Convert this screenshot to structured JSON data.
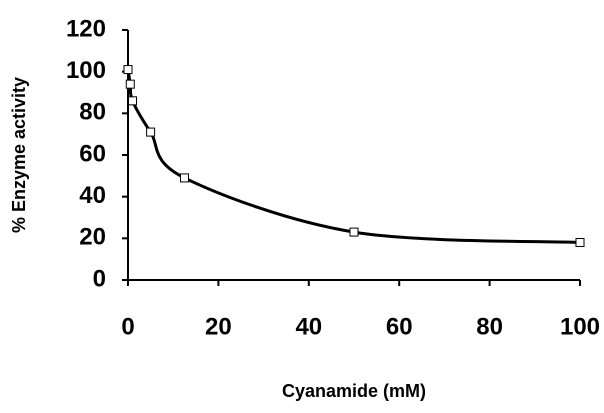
{
  "chart_data": {
    "type": "line",
    "x_label": "Cyanamide (mM)",
    "y_label": "% Enzyme activity",
    "x": [
      0,
      0.5,
      1,
      5,
      12.5,
      50,
      100
    ],
    "values": [
      101,
      94,
      86,
      71,
      49,
      23,
      18
    ],
    "color": "#000000",
    "markers": "square",
    "smooth": true,
    "xlim": [
      0,
      100
    ],
    "xticks": [
      0,
      20,
      40,
      60,
      80,
      100
    ],
    "ylim": [
      0,
      120
    ],
    "yticks": [
      0,
      20,
      40,
      60,
      80,
      100,
      120
    ],
    "grid": false
  }
}
